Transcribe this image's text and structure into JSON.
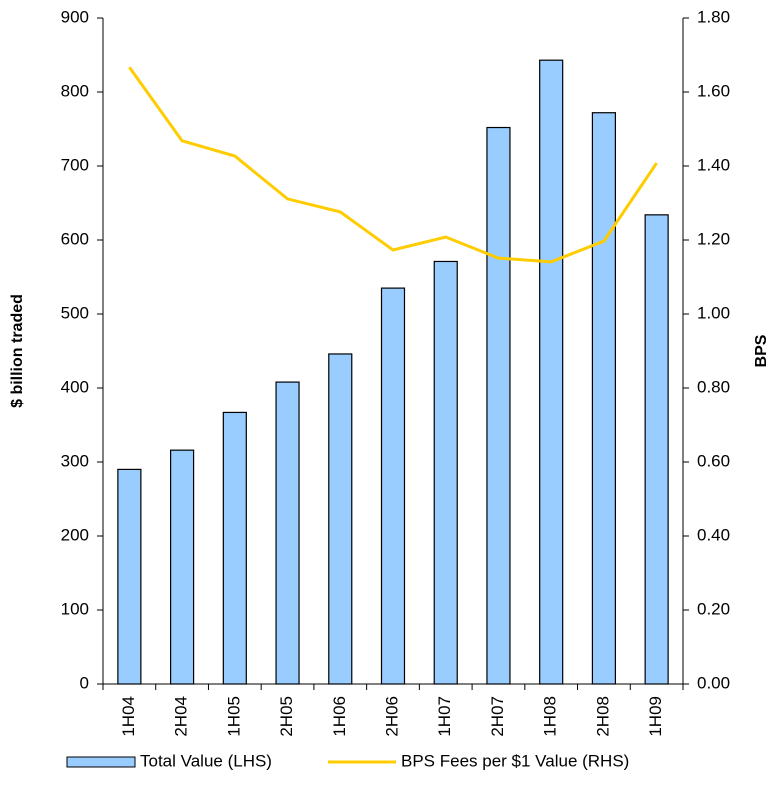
{
  "chart_data": {
    "type": "bar_line",
    "y_label": "$ billion traded",
    "y2_label": "BPS",
    "categories": [
      "1H04",
      "2H04",
      "1H05",
      "2H05",
      "1H06",
      "2H06",
      "1H07",
      "2H07",
      "1H08",
      "2H08",
      "1H09"
    ],
    "series": [
      {
        "name": "Total Value (LHS)",
        "type": "bar",
        "color": "#99ccff",
        "values": [
          290,
          316,
          367,
          408,
          446,
          535,
          571,
          752,
          843,
          772,
          634
        ]
      },
      {
        "name": "BPS Fees per $1 Value (RHS)",
        "type": "line",
        "color": "#ffcc00",
        "axis": "y2",
        "values": [
          1.667,
          1.468,
          1.427,
          1.311,
          1.276,
          1.173,
          1.208,
          1.151,
          1.141,
          1.197,
          1.408
        ]
      }
    ],
    "ylim": [
      0,
      900
    ],
    "yticks": [
      0,
      100,
      200,
      300,
      400,
      500,
      600,
      700,
      800,
      900
    ],
    "y2lim": [
      0,
      1.8
    ],
    "y2ticks": [
      {
        "value": 0,
        "label": "0.00"
      },
      {
        "value": 0.2,
        "label": "0.20"
      },
      {
        "value": 0.4,
        "label": "0.40"
      },
      {
        "value": 0.6,
        "label": "0.60"
      },
      {
        "value": 0.8,
        "label": "0.80"
      },
      {
        "value": 1.0,
        "label": "1.00"
      },
      {
        "value": 1.2,
        "label": "1.20"
      },
      {
        "value": 1.4,
        "label": "1.40"
      },
      {
        "value": 1.6,
        "label": "1.60"
      },
      {
        "value": 1.8,
        "label": "1.80"
      }
    ],
    "grid": false,
    "legend": "bottom"
  }
}
